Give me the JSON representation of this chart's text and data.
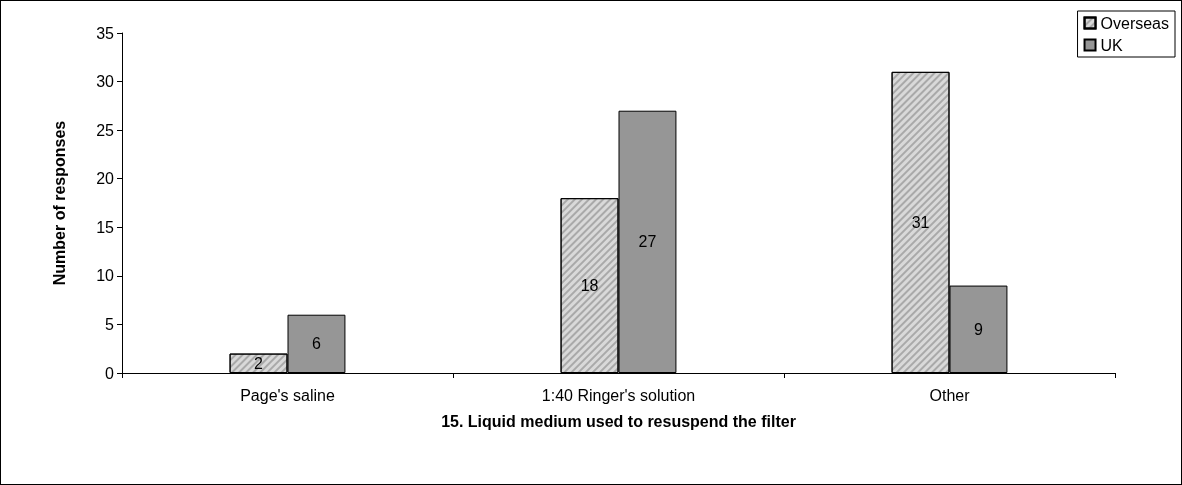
{
  "chart_data": {
    "type": "bar",
    "xlabel": "15. Liquid medium used to resuspend the filter",
    "ylabel": "Number of responses",
    "categories": [
      "Page's saline",
      "1:40 Ringer's solution",
      "Other"
    ],
    "series": [
      {
        "name": "Overseas",
        "color": "#d9d9d9",
        "values": [
          2,
          18,
          31
        ]
      },
      {
        "name": "UK",
        "color": "#969696",
        "values": [
          6,
          27,
          9
        ]
      }
    ],
    "ylim": [
      0,
      35
    ],
    "yticks": [
      0,
      5,
      10,
      15,
      20,
      25,
      30,
      35
    ],
    "grid": false,
    "legend": "top right",
    "data_labels": true
  }
}
